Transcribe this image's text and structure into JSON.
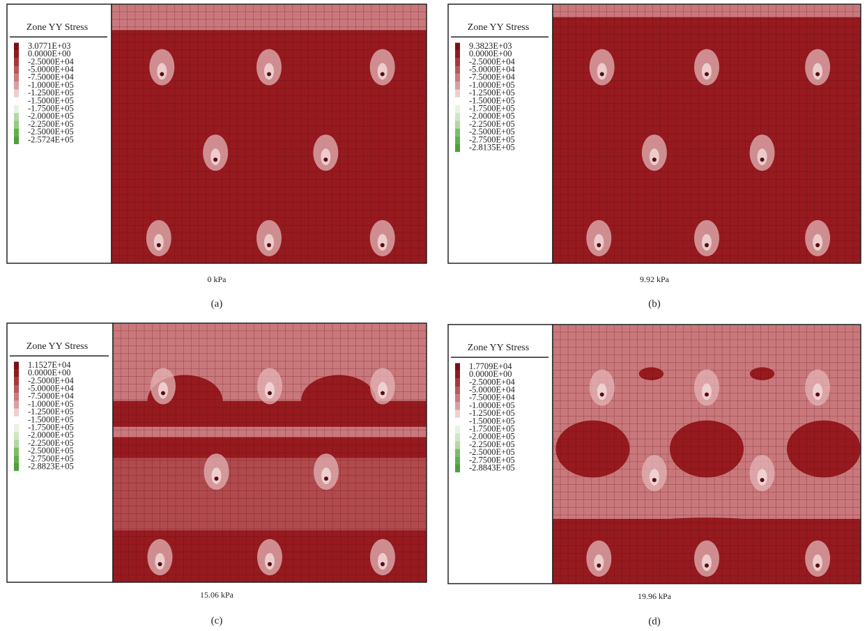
{
  "panels": [
    {
      "legend_title": "Zone YY Stress",
      "legend_labels": [
        "3.0771E+03",
        "0.0000E+00",
        "-2.5000E+04",
        "-5.0000E+04",
        "-7.5000E+04",
        "-1.0000E+05",
        "-1.2500E+05",
        "-1.5000E+05",
        "-1.7500E+05",
        "-2.0000E+05",
        "-2.2500E+05",
        "-2.5000E+05",
        "-2.5724E+05"
      ],
      "caption": "0 kPa",
      "sublabel": "(a)"
    },
    {
      "legend_title": "Zone YY Stress",
      "legend_labels": [
        "9.3823E+03",
        "0.0000E+00",
        "-2.5000E+04",
        "-5.0000E+04",
        "-7.5000E+04",
        "-1.0000E+05",
        "-1.2500E+05",
        "-1.5000E+05",
        "-1.7500E+05",
        "-2.0000E+05",
        "-2.2500E+05",
        "-2.5000E+05",
        "-2.7500E+05",
        "-2.8135E+05"
      ],
      "caption": "9.92 kPa",
      "sublabel": "(b)"
    },
    {
      "legend_title": "Zone YY Stress",
      "legend_labels": [
        "1.1527E+04",
        "0.0000E+00",
        "-2.5000E+04",
        "-5.0000E+04",
        "-7.5000E+04",
        "-1.0000E+05",
        "-1.2500E+05",
        "-1.5000E+05",
        "-1.7500E+05",
        "-2.0000E+05",
        "-2.2500E+05",
        "-2.5000E+05",
        "-2.7500E+05",
        "-2.8823E+05"
      ],
      "caption": "15.06 kPa",
      "sublabel": "(c)"
    },
    {
      "legend_title": "Zone YY Stress",
      "legend_labels": [
        "1.7709E+04",
        "0.0000E+00",
        "-2.5000E+04",
        "-5.0000E+04",
        "-7.5000E+04",
        "-1.0000E+05",
        "-1.2500E+05",
        "-1.5000E+05",
        "-1.7500E+05",
        "-2.0000E+05",
        "-2.2500E+05",
        "-2.5000E+05",
        "-2.7500E+05",
        "-2.8843E+05"
      ],
      "caption": "19.96 kPa",
      "sublabel": "(d)"
    }
  ]
}
